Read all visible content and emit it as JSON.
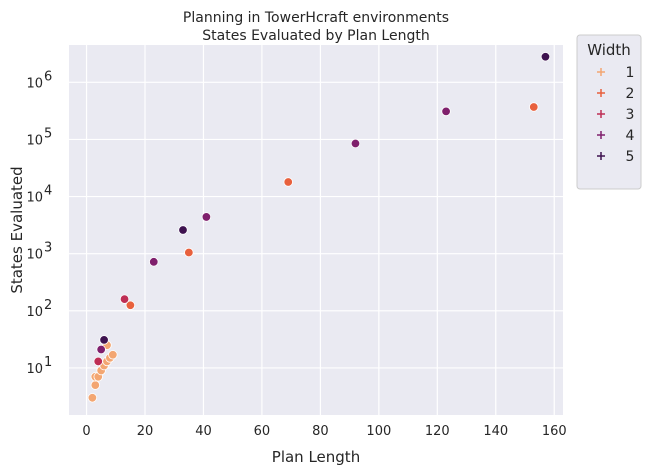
{
  "chart_data": {
    "type": "scatter",
    "title": "Planning in TowerHcraft environments",
    "subtitle": "States Evaluated by Plan Length",
    "xlabel": "Plan Length",
    "ylabel": "States Evaluated",
    "xlim": [
      -6,
      163
    ],
    "ylim": [
      1.5,
      4500000
    ],
    "yscale": "log",
    "grid": true,
    "x_ticks": [
      0,
      20,
      40,
      60,
      80,
      100,
      120,
      140,
      160
    ],
    "y_ticks": [
      {
        "value": 10,
        "exp": "1"
      },
      {
        "value": 100,
        "exp": "2"
      },
      {
        "value": 1000,
        "exp": "3"
      },
      {
        "value": 10000,
        "exp": "4"
      },
      {
        "value": 100000,
        "exp": "5"
      },
      {
        "value": 1000000,
        "exp": "6"
      }
    ],
    "tick_base": "10",
    "legend": {
      "title": "Width",
      "placement": "outside-right",
      "entries": [
        "1",
        "2",
        "3",
        "4",
        "5"
      ]
    },
    "series": [
      {
        "width": 1,
        "color": "#f3a672",
        "points": [
          [
            2,
            3
          ],
          [
            3,
            5
          ],
          [
            3,
            7
          ],
          [
            4,
            7
          ],
          [
            5,
            9
          ],
          [
            6,
            11
          ],
          [
            7,
            13
          ],
          [
            8,
            15
          ],
          [
            9,
            17
          ],
          [
            7,
            25
          ]
        ]
      },
      {
        "width": 2,
        "color": "#e8603d",
        "points": [
          [
            15,
            125
          ],
          [
            35,
            1050
          ],
          [
            69,
            18000
          ],
          [
            153,
            370000
          ]
        ]
      },
      {
        "width": 3,
        "color": "#be2e55",
        "points": [
          [
            4,
            13
          ],
          [
            13,
            160
          ]
        ]
      },
      {
        "width": 4,
        "color": "#7f1f6c",
        "points": [
          [
            5,
            21
          ],
          [
            23,
            720
          ],
          [
            41,
            4400
          ],
          [
            92,
            85000
          ],
          [
            123,
            310000
          ]
        ]
      },
      {
        "width": 5,
        "color": "#3e124f",
        "points": [
          [
            6,
            31
          ],
          [
            33,
            2600
          ],
          [
            157,
            2800000
          ]
        ]
      }
    ],
    "colors": {
      "plot_bg": "#eaeaf2",
      "grid": "#ffffff",
      "marker_edge": "#ffffff"
    }
  }
}
